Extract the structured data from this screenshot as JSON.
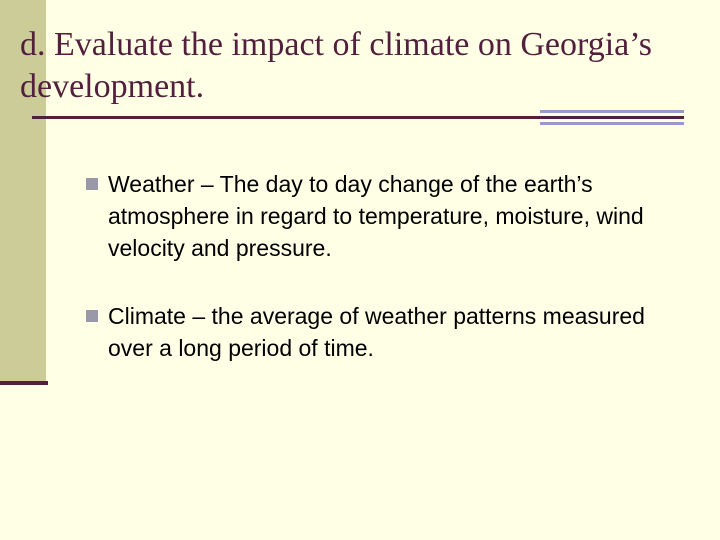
{
  "slide": {
    "title": "d. Evaluate the impact of climate on Georgia’s development.",
    "bullets": [
      {
        "text": "Weather – The day to day change of the earth’s atmosphere in regard to temperature, moisture, wind velocity and pressure."
      },
      {
        "text": "Climate – the average of weather patterns measured over a long period of time."
      }
    ]
  },
  "colors": {
    "background": "#ffffe6",
    "left_bar": "#cccc99",
    "title_text": "#52203d",
    "accent_stripe": "#9999cc",
    "bullet_marker": "#9999aa",
    "body_text": "#000000"
  },
  "icons": {
    "bullet_marker": "square-bullet-icon"
  }
}
